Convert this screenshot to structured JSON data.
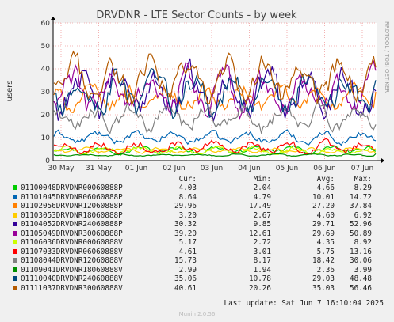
{
  "chart_data": {
    "type": "line",
    "title": "DRVDNR - LTE Sector Counts - by week",
    "ylabel": "users",
    "side_label": "RRDTOOL / TOBI OETIKER",
    "ylim": [
      0,
      60
    ],
    "yticks": [
      0,
      10,
      20,
      30,
      40,
      50,
      60
    ],
    "x_tick_labels": [
      "30 May",
      "31 May",
      "01 Jun",
      "02 Jun",
      "03 Jun",
      "04 Jun",
      "05 Jun",
      "06 Jun",
      "07 Jun"
    ],
    "grid": true,
    "legend_headers": [
      "Cur:",
      "Min:",
      "Avg:",
      "Max:"
    ],
    "series": [
      {
        "name": "01100048DRVDNR00060888P",
        "color": "#00cc00",
        "cur": "4.03",
        "min": "2.04",
        "avg": "4.66",
        "max": "8.29"
      },
      {
        "name": "01101045DRVDNR06060888P",
        "color": "#0066b3",
        "cur": "8.64",
        "min": "4.79",
        "avg": "10.01",
        "max": "14.72"
      },
      {
        "name": "01102056DRVDNR12060888P",
        "color": "#ff8000",
        "cur": "29.96",
        "min": "17.49",
        "avg": "27.20",
        "max": "37.84"
      },
      {
        "name": "01103053DRVDNR18060888P",
        "color": "#ffcc00",
        "cur": "3.20",
        "min": "2.67",
        "avg": "4.60",
        "max": "6.92"
      },
      {
        "name": "01104052DRVDNR24060888P",
        "color": "#330099",
        "cur": "30.32",
        "min": "9.85",
        "avg": "29.71",
        "max": "52.96"
      },
      {
        "name": "01105049DRVDNR30060888P",
        "color": "#990099",
        "cur": "39.20",
        "min": "12.61",
        "avg": "29.69",
        "max": "50.89"
      },
      {
        "name": "01106036DRVDNR00060888V",
        "color": "#ccff00",
        "cur": "5.17",
        "min": "2.72",
        "avg": "4.35",
        "max": "8.92"
      },
      {
        "name": "01107033DRVDNR06060888V",
        "color": "#ff0000",
        "cur": "4.61",
        "min": "3.01",
        "avg": "5.75",
        "max": "13.16"
      },
      {
        "name": "01108044DRVDNR12060888V",
        "color": "#808080",
        "cur": "15.73",
        "min": "8.17",
        "avg": "18.42",
        "max": "30.06"
      },
      {
        "name": "01109041DRVDNR18060888V",
        "color": "#008f00",
        "cur": "2.99",
        "min": "1.94",
        "avg": "2.36",
        "max": "3.99"
      },
      {
        "name": "01110040DRVDNR24060888V",
        "color": "#00487d",
        "cur": "35.06",
        "min": "10.78",
        "avg": "29.03",
        "max": "48.48"
      },
      {
        "name": "01111037DRVDNR30060888V",
        "color": "#b35a00",
        "cur": "40.61",
        "min": "20.26",
        "avg": "35.03",
        "max": "56.46"
      }
    ],
    "last_update": "Last update: Sat Jun  7 16:10:04 2025",
    "footer": "Munin 2.0.56"
  }
}
